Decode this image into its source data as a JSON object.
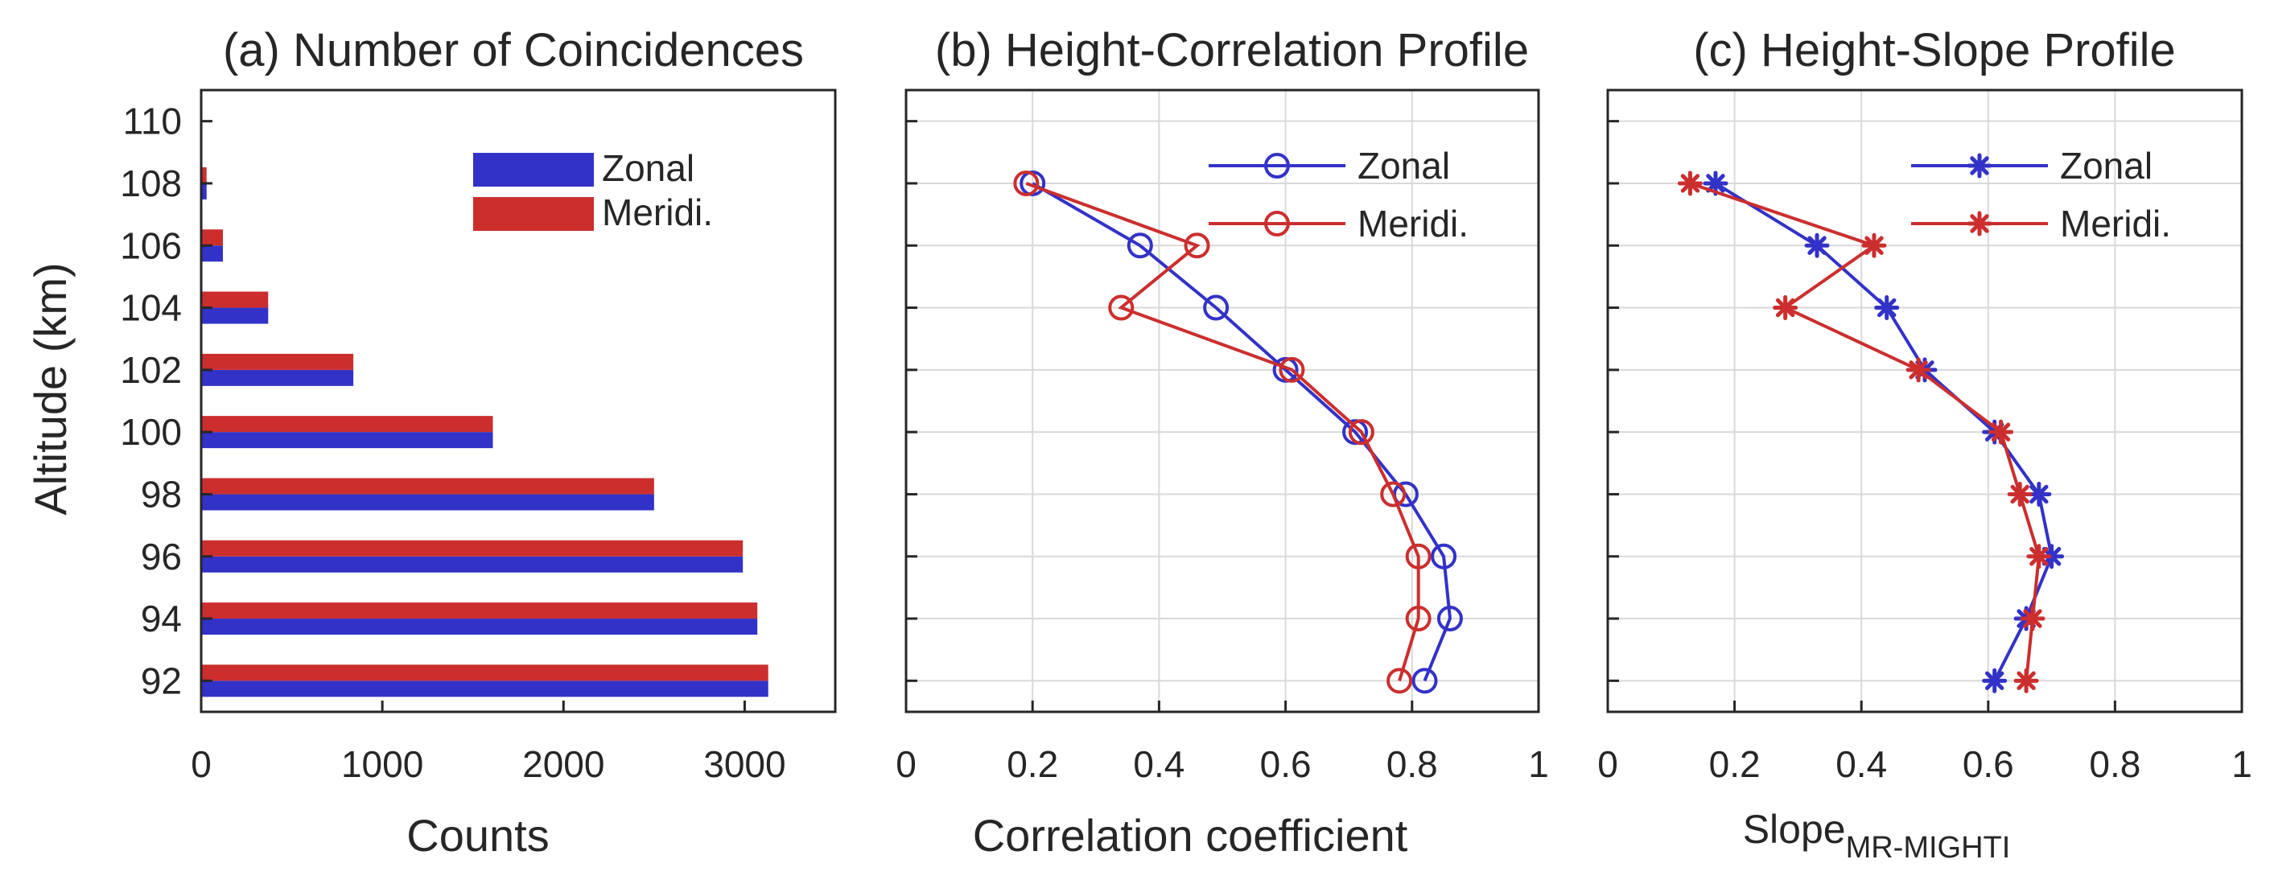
{
  "chart_data": [
    {
      "type": "bar",
      "orientation": "horizontal",
      "title": "(a) Number of Coincidences",
      "xlabel": "Counts",
      "ylabel": "Altitude (km)",
      "categories": [
        92,
        94,
        96,
        98,
        100,
        102,
        104,
        106,
        108,
        110
      ],
      "series": [
        {
          "name": "Zonal",
          "color": "#3232c8",
          "values": [
            3130,
            3070,
            2990,
            2500,
            1610,
            840,
            370,
            120,
            30,
            0
          ]
        },
        {
          "name": "Meridi.",
          "color": "#cc2e2e",
          "values": [
            3130,
            3070,
            2990,
            2500,
            1610,
            840,
            370,
            120,
            30,
            0
          ]
        }
      ],
      "xlim": [
        0,
        3500
      ],
      "xticks": [
        0,
        1000,
        2000,
        3000
      ],
      "yticks": [
        92,
        94,
        96,
        98,
        100,
        102,
        104,
        106,
        108,
        110
      ],
      "grid": false,
      "legend_position": "top-right"
    },
    {
      "type": "line",
      "title": "(b) Height-Correlation Profile",
      "xlabel": "Correlation coefficient",
      "ylabel": "",
      "marker": "circle",
      "series": [
        {
          "name": "Zonal",
          "color": "#3232c8",
          "x": [
            0.82,
            0.86,
            0.85,
            0.79,
            0.71,
            0.6,
            0.49,
            0.37,
            0.2
          ],
          "y": [
            92,
            94,
            96,
            98,
            100,
            102,
            104,
            106,
            108
          ]
        },
        {
          "name": "Meridi.",
          "color": "#cc2e2e",
          "x": [
            0.78,
            0.81,
            0.81,
            0.77,
            0.72,
            0.61,
            0.34,
            0.46,
            0.19
          ],
          "y": [
            92,
            94,
            96,
            98,
            100,
            102,
            104,
            106,
            108
          ]
        }
      ],
      "xlim": [
        0,
        1
      ],
      "ylim": [
        91,
        111
      ],
      "xticks": [
        0,
        0.2,
        0.4,
        0.6,
        0.8,
        1
      ],
      "xtick_labels": [
        "0",
        "0.2",
        "0.4",
        "0.6",
        "0.8",
        "1"
      ],
      "grid": true,
      "legend_position": "top-right"
    },
    {
      "type": "line",
      "title": "(c) Height-Slope Profile",
      "xlabel": "Slope",
      "xlabel_subscript": "MR-MIGHTI",
      "ylabel": "",
      "marker": "star",
      "series": [
        {
          "name": "Zonal",
          "color": "#3232c8",
          "x": [
            0.61,
            0.66,
            0.7,
            0.68,
            0.61,
            0.5,
            0.44,
            0.33,
            0.17
          ],
          "y": [
            92,
            94,
            96,
            98,
            100,
            102,
            104,
            106,
            108
          ]
        },
        {
          "name": "Meridi.",
          "color": "#cc2e2e",
          "x": [
            0.66,
            0.67,
            0.68,
            0.65,
            0.62,
            0.49,
            0.28,
            0.42,
            0.13
          ],
          "y": [
            92,
            94,
            96,
            98,
            100,
            102,
            104,
            106,
            108
          ]
        }
      ],
      "xlim": [
        0,
        1
      ],
      "ylim": [
        91,
        111
      ],
      "xticks": [
        0,
        0.2,
        0.4,
        0.6,
        0.8,
        1
      ],
      "xtick_labels": [
        "0",
        "0.2",
        "0.4",
        "0.6",
        "0.8",
        "1"
      ],
      "grid": true,
      "legend_position": "top-right"
    }
  ]
}
